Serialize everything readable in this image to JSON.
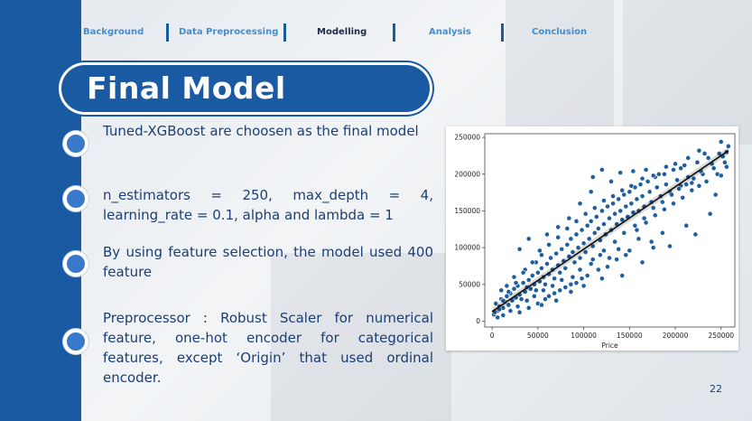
{
  "nav": {
    "items": [
      {
        "label": "Background",
        "active": false
      },
      {
        "label": "Data Preprocessing",
        "active": false
      },
      {
        "label": "Modelling",
        "active": true
      },
      {
        "label": "Analysis",
        "active": false
      },
      {
        "label": "Conclusion",
        "active": false
      }
    ]
  },
  "title": "Final Model",
  "bullets": [
    "Tuned-XGBoost are choosen as the final model",
    "n_estimators = 250, max_depth = 4, learning_rate = 0.1, alpha and lambda = 1",
    "By using feature selection, the model used 400 feature",
    "Preprocessor : Robust Scaler for numerical feature, one-hot encoder for categorical features, except ‘Origin’ that used ordinal encoder."
  ],
  "slide_number": "22",
  "colors": {
    "primary": "#1a5aa3",
    "accent": "#3f8fd6",
    "point": "#1f5f9f",
    "text": "#1b3f74"
  },
  "chart_data": {
    "type": "scatter",
    "title": "",
    "xlabel": "Price",
    "ylabel": "",
    "xlim": [
      -8000,
      265000
    ],
    "ylim": [
      -8000,
      255000
    ],
    "xticks": [
      0,
      50000,
      100000,
      150000,
      200000,
      250000
    ],
    "yticks": [
      0,
      50000,
      100000,
      150000,
      200000,
      250000
    ],
    "xtick_labels": [
      "0",
      "50000",
      "100000",
      "150000",
      "200000",
      "250000"
    ],
    "ytick_labels": [
      "0",
      "50000",
      "100000",
      "150000",
      "200000",
      "250000"
    ],
    "grid": false,
    "regression_line": {
      "x": [
        0,
        258000
      ],
      "y": [
        13000,
        232000
      ]
    },
    "points": [
      [
        2000,
        9000
      ],
      [
        4000,
        24000
      ],
      [
        6000,
        14000
      ],
      [
        8000,
        20000
      ],
      [
        10000,
        30000
      ],
      [
        12000,
        18000
      ],
      [
        14000,
        26000
      ],
      [
        16000,
        34000
      ],
      [
        18000,
        22000
      ],
      [
        20000,
        38000
      ],
      [
        22000,
        28000
      ],
      [
        24000,
        44000
      ],
      [
        26000,
        32000
      ],
      [
        28000,
        48000
      ],
      [
        30000,
        36000
      ],
      [
        32000,
        30000
      ],
      [
        34000,
        52000
      ],
      [
        36000,
        40000
      ],
      [
        38000,
        46000
      ],
      [
        40000,
        56000
      ],
      [
        42000,
        44000
      ],
      [
        44000,
        62000
      ],
      [
        46000,
        50000
      ],
      [
        48000,
        42000
      ],
      [
        50000,
        66000
      ],
      [
        52000,
        54000
      ],
      [
        54000,
        72000
      ],
      [
        56000,
        60000
      ],
      [
        58000,
        50000
      ],
      [
        60000,
        78000
      ],
      [
        62000,
        64000
      ],
      [
        64000,
        86000
      ],
      [
        66000,
        70000
      ],
      [
        68000,
        58000
      ],
      [
        70000,
        92000
      ],
      [
        72000,
        76000
      ],
      [
        74000,
        66000
      ],
      [
        76000,
        98000
      ],
      [
        78000,
        82000
      ],
      [
        80000,
        72000
      ],
      [
        82000,
        104000
      ],
      [
        84000,
        88000
      ],
      [
        86000,
        112000
      ],
      [
        88000,
        94000
      ],
      [
        90000,
        80000
      ],
      [
        92000,
        118000
      ],
      [
        94000,
        100000
      ],
      [
        96000,
        86000
      ],
      [
        98000,
        124000
      ],
      [
        100000,
        106000
      ],
      [
        102000,
        94000
      ],
      [
        104000,
        130000
      ],
      [
        106000,
        112000
      ],
      [
        108000,
        136000
      ],
      [
        110000,
        102000
      ],
      [
        112000,
        120000
      ],
      [
        114000,
        142000
      ],
      [
        116000,
        126000
      ],
      [
        118000,
        110000
      ],
      [
        120000,
        150000
      ],
      [
        122000,
        132000
      ],
      [
        124000,
        118000
      ],
      [
        126000,
        156000
      ],
      [
        128000,
        140000
      ],
      [
        130000,
        124000
      ],
      [
        132000,
        160000
      ],
      [
        134000,
        146000
      ],
      [
        136000,
        132000
      ],
      [
        138000,
        166000
      ],
      [
        140000,
        150000
      ],
      [
        142000,
        138000
      ],
      [
        144000,
        172000
      ],
      [
        146000,
        156000
      ],
      [
        148000,
        142000
      ],
      [
        150000,
        176000
      ],
      [
        152000,
        160000
      ],
      [
        154000,
        148000
      ],
      [
        156000,
        182000
      ],
      [
        158000,
        166000
      ],
      [
        160000,
        150000
      ],
      [
        162000,
        186000
      ],
      [
        164000,
        170000
      ],
      [
        166000,
        156000
      ],
      [
        170000,
        190000
      ],
      [
        172000,
        176000
      ],
      [
        174000,
        162000
      ],
      [
        178000,
        196000
      ],
      [
        180000,
        182000
      ],
      [
        184000,
        170000
      ],
      [
        188000,
        200000
      ],
      [
        190000,
        186000
      ],
      [
        194000,
        176000
      ],
      [
        198000,
        206000
      ],
      [
        202000,
        192000
      ],
      [
        206000,
        184000
      ],
      [
        210000,
        212000
      ],
      [
        214000,
        196000
      ],
      [
        218000,
        188000
      ],
      [
        224000,
        216000
      ],
      [
        230000,
        200000
      ],
      [
        236000,
        222000
      ],
      [
        242000,
        208000
      ],
      [
        248000,
        228000
      ],
      [
        254000,
        216000
      ],
      [
        258000,
        238000
      ],
      [
        250000,
        244000
      ],
      [
        232000,
        228000
      ],
      [
        206000,
        208000
      ],
      [
        244000,
        172000
      ],
      [
        238000,
        146000
      ],
      [
        222000,
        118000
      ],
      [
        212000,
        130000
      ],
      [
        194000,
        102000
      ],
      [
        186000,
        120000
      ],
      [
        174000,
        108000
      ],
      [
        160000,
        112000
      ],
      [
        150000,
        96000
      ],
      [
        138000,
        98000
      ],
      [
        128000,
        86000
      ],
      [
        118000,
        90000
      ],
      [
        108000,
        78000
      ],
      [
        96000,
        70000
      ],
      [
        88000,
        60000
      ],
      [
        76000,
        56000
      ],
      [
        66000,
        48000
      ],
      [
        56000,
        42000
      ],
      [
        46000,
        34000
      ],
      [
        38000,
        28000
      ],
      [
        28000,
        20000
      ],
      [
        20000,
        14000
      ],
      [
        12000,
        8000
      ],
      [
        6000,
        5000
      ],
      [
        60000,
        118000
      ],
      [
        72000,
        128000
      ],
      [
        84000,
        140000
      ],
      [
        96000,
        160000
      ],
      [
        108000,
        176000
      ],
      [
        130000,
        190000
      ],
      [
        140000,
        202000
      ],
      [
        154000,
        204000
      ],
      [
        168000,
        206000
      ],
      [
        182000,
        200000
      ],
      [
        120000,
        206000
      ],
      [
        110000,
        196000
      ],
      [
        30000,
        98000
      ],
      [
        40000,
        112000
      ],
      [
        48000,
        80000
      ],
      [
        52000,
        96000
      ],
      [
        36000,
        70000
      ],
      [
        24000,
        60000
      ],
      [
        16000,
        48000
      ],
      [
        10000,
        42000
      ],
      [
        58000,
        30000
      ],
      [
        68000,
        38000
      ],
      [
        80000,
        46000
      ],
      [
        92000,
        52000
      ],
      [
        104000,
        62000
      ],
      [
        116000,
        70000
      ],
      [
        126000,
        74000
      ],
      [
        136000,
        84000
      ],
      [
        146000,
        90000
      ],
      [
        158000,
        124000
      ],
      [
        168000,
        134000
      ],
      [
        178000,
        144000
      ],
      [
        188000,
        152000
      ],
      [
        198000,
        160000
      ],
      [
        208000,
        168000
      ],
      [
        218000,
        178000
      ],
      [
        226000,
        184000
      ],
      [
        234000,
        190000
      ],
      [
        246000,
        200000
      ],
      [
        256000,
        210000
      ],
      [
        226000,
        232000
      ],
      [
        214000,
        222000
      ],
      [
        200000,
        214000
      ],
      [
        190000,
        210000
      ],
      [
        176000,
        198000
      ],
      [
        164000,
        194000
      ],
      [
        152000,
        184000
      ],
      [
        142000,
        178000
      ],
      [
        132000,
        170000
      ],
      [
        122000,
        164000
      ],
      [
        112000,
        154000
      ],
      [
        102000,
        146000
      ],
      [
        92000,
        136000
      ],
      [
        82000,
        126000
      ],
      [
        72000,
        114000
      ],
      [
        62000,
        104000
      ],
      [
        54000,
        90000
      ],
      [
        44000,
        80000
      ],
      [
        34000,
        66000
      ],
      [
        26000,
        52000
      ],
      [
        18000,
        40000
      ],
      [
        12000,
        28000
      ],
      [
        8000,
        16000
      ],
      [
        3000,
        12000
      ],
      [
        50000,
        24000
      ],
      [
        62000,
        34000
      ],
      [
        74000,
        42000
      ],
      [
        86000,
        50000
      ],
      [
        98000,
        58000
      ],
      [
        110000,
        84000
      ],
      [
        122000,
        96000
      ],
      [
        134000,
        108000
      ],
      [
        144000,
        120000
      ],
      [
        156000,
        130000
      ],
      [
        166000,
        140000
      ],
      [
        176000,
        154000
      ],
      [
        186000,
        162000
      ],
      [
        196000,
        172000
      ],
      [
        204000,
        180000
      ],
      [
        212000,
        186000
      ],
      [
        220000,
        194000
      ],
      [
        228000,
        204000
      ],
      [
        240000,
        214000
      ],
      [
        252000,
        224000
      ],
      [
        250000,
        198000
      ],
      [
        256000,
        230000
      ],
      [
        176000,
        100000
      ],
      [
        164000,
        80000
      ],
      [
        142000,
        62000
      ],
      [
        120000,
        58000
      ],
      [
        100000,
        48000
      ],
      [
        86000,
        40000
      ],
      [
        70000,
        28000
      ],
      [
        54000,
        22000
      ],
      [
        40000,
        18000
      ],
      [
        30000,
        12000
      ]
    ]
  }
}
